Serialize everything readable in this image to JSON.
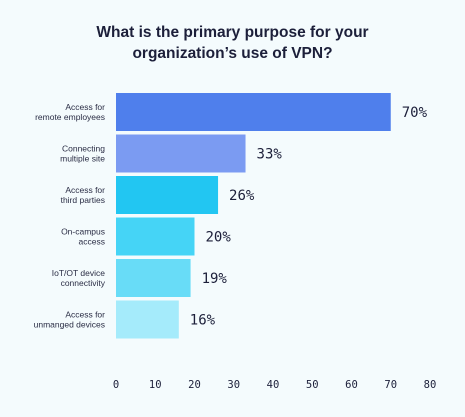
{
  "chart_data": {
    "type": "bar",
    "orientation": "horizontal",
    "title_line1": "What is the primary purpose for your",
    "title_line2": "organization’s use of VPN?",
    "categories": [
      [
        "Access for",
        "remote employees"
      ],
      [
        "Connecting",
        "multiple site"
      ],
      [
        "Access for",
        "third parties"
      ],
      [
        "On-campus",
        "access"
      ],
      [
        "IoT/OT device",
        "connectivity"
      ],
      [
        "Access for",
        "unmanged devices"
      ]
    ],
    "values": [
      70,
      33,
      26,
      20,
      19,
      16
    ],
    "value_labels": [
      "70%",
      "33%",
      "26%",
      "20%",
      "19%",
      "16%"
    ],
    "bar_colors": [
      "#4f7fec",
      "#7b9bf2",
      "#22c6f2",
      "#45d4f6",
      "#68dcf7",
      "#a5ebfb"
    ],
    "xlim": [
      0,
      80
    ],
    "x_ticks": [
      0,
      10,
      20,
      30,
      40,
      50,
      60,
      70,
      80
    ],
    "x_tick_labels": [
      "0",
      "10",
      "20",
      "30",
      "40",
      "50",
      "60",
      "70",
      "80"
    ],
    "xlabel": "",
    "ylabel": "",
    "grid": false,
    "legend": "none"
  }
}
